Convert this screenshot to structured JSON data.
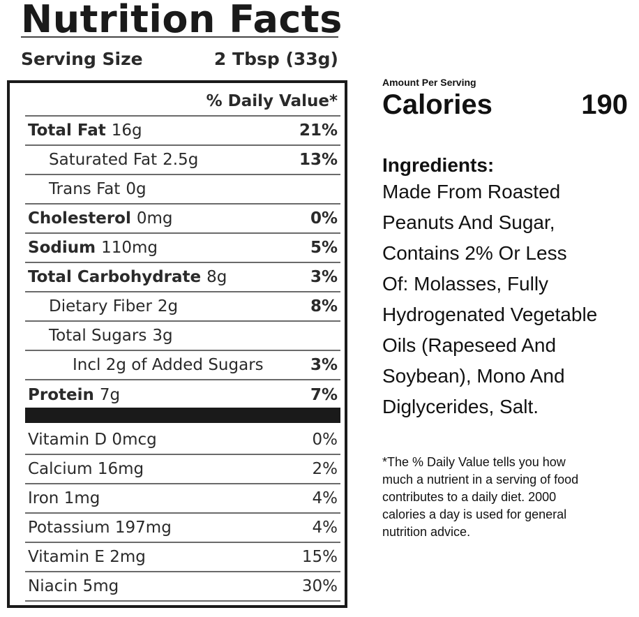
{
  "label": {
    "title": "Nutrition Facts",
    "serving_size_label": "Serving Size",
    "serving_size_value": "2 Tbsp (33g)",
    "daily_value_header": "% Daily Value*",
    "rows": [
      {
        "name": "Total Fat",
        "amount": "16g",
        "dv": "21%"
      },
      {
        "name": "Saturated Fat",
        "amount": "2.5g",
        "dv": "13%"
      },
      {
        "name": "Trans Fat",
        "amount": "0g",
        "dv": ""
      },
      {
        "name": "Cholesterol",
        "amount": "0mg",
        "dv": "0%"
      },
      {
        "name": "Sodium",
        "amount": "110mg",
        "dv": "5%"
      },
      {
        "name": "Total Carbohydrate",
        "amount": "8g",
        "dv": "3%"
      },
      {
        "name": "Dietary Fiber",
        "amount": "2g",
        "dv": "8%"
      },
      {
        "name": "Total Sugars",
        "amount": "3g",
        "dv": ""
      },
      {
        "name": "Incl 2g of Added Sugars",
        "amount": "",
        "dv": "3%"
      },
      {
        "name": "Protein",
        "amount": "7g",
        "dv": "7%"
      }
    ],
    "vitamins": [
      {
        "name": "Vitamin D 0mcg",
        "dv": "0%"
      },
      {
        "name": "Calcium 16mg",
        "dv": "2%"
      },
      {
        "name": "Iron 1mg",
        "dv": "4%"
      },
      {
        "name": "Potassium 197mg",
        "dv": "4%"
      },
      {
        "name": "Vitamin E 2mg",
        "dv": "15%"
      },
      {
        "name": "Niacin 5mg",
        "dv": "30%"
      }
    ]
  },
  "calories": {
    "amount_per_serving": "Amount Per Serving",
    "label": "Calories",
    "value": "190"
  },
  "ingredients": {
    "title": "Ingredients:",
    "lines": [
      "Made From Roasted",
      "Peanuts And Sugar,",
      "Contains 2% Or Less",
      "Of: Molasses, Fully",
      "Hydrogenated Vegetable",
      "Oils (Rapeseed And",
      "Soybean), Mono And",
      "Diglycerides, Salt."
    ]
  },
  "footnote": {
    "lines": [
      "*The % Daily Value tells you how",
      "much a nutrient in a serving of food",
      "contributes to a daily diet. 2000",
      "calories a day is used for general",
      "nutrition advice."
    ]
  }
}
